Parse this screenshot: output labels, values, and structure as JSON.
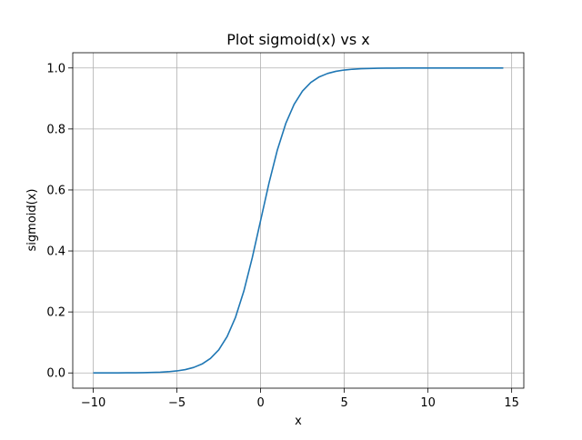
{
  "chart_data": {
    "type": "line",
    "title": "Plot sigmoid(x) vs x",
    "xlabel": "x",
    "ylabel": "sigmoid(x)",
    "xlim": [
      -11.225,
      15.725
    ],
    "ylim": [
      -0.05,
      1.05
    ],
    "grid": true,
    "x_ticks": [
      -10,
      -5,
      0,
      5,
      10,
      15
    ],
    "x_tick_labels": [
      "−10",
      "−5",
      "0",
      "5",
      "10",
      "15"
    ],
    "y_ticks": [
      0.0,
      0.2,
      0.4,
      0.6,
      0.8,
      1.0
    ],
    "y_tick_labels": [
      "0.0",
      "0.2",
      "0.4",
      "0.6",
      "0.8",
      "1.0"
    ],
    "series": [
      {
        "color": "#1f77b4",
        "x": [
          -10.0,
          -9.5,
          -9.0,
          -8.5,
          -8.0,
          -7.5,
          -7.0,
          -6.5,
          -6.0,
          -5.5,
          -5.0,
          -4.5,
          -4.0,
          -3.5,
          -3.0,
          -2.5,
          -2.0,
          -1.5,
          -1.0,
          -0.5,
          0.0,
          0.5,
          1.0,
          1.5,
          2.0,
          2.5,
          3.0,
          3.5,
          4.0,
          4.5,
          5.0,
          5.5,
          6.0,
          6.5,
          7.0,
          7.5,
          8.0,
          8.5,
          9.0,
          9.5,
          10.0,
          10.5,
          11.0,
          11.5,
          12.0,
          12.5,
          13.0,
          13.5,
          14.0,
          14.5
        ],
        "y": [
          5e-05,
          7e-05,
          0.00012,
          0.0002,
          0.00034,
          0.00055,
          0.00091,
          0.0015,
          0.00247,
          0.00407,
          0.00669,
          0.01099,
          0.01799,
          0.02931,
          0.04743,
          0.07586,
          0.1192,
          0.18243,
          0.26894,
          0.37754,
          0.5,
          0.62246,
          0.73106,
          0.81757,
          0.8808,
          0.92414,
          0.95257,
          0.97069,
          0.98201,
          0.98901,
          0.99331,
          0.99593,
          0.99753,
          0.9985,
          0.99909,
          0.99945,
          0.99966,
          0.9998,
          0.99988,
          0.99993,
          0.99995,
          0.99997,
          0.99998,
          0.99999,
          0.99999,
          1.0,
          1.0,
          1.0,
          1.0,
          1.0
        ]
      }
    ]
  }
}
